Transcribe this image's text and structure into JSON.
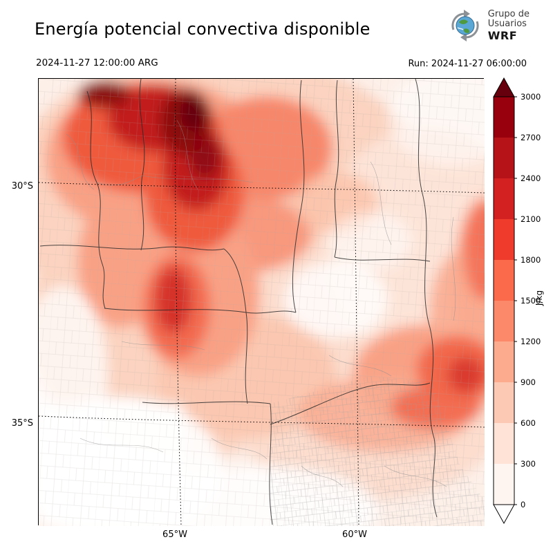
{
  "header": {
    "title": "Energía potencial convectiva disponible",
    "valid_time": "2024-11-27 12:00:00 ARG",
    "run_label": "Run: 2024-11-27 06:00:00",
    "logo": {
      "line1": "Grupo de",
      "line2": "Usuarios",
      "line3": "WRF"
    }
  },
  "map_axes": {
    "lat_ticks": [
      "30°S",
      "35°S"
    ],
    "lon_ticks": [
      "65°W",
      "60°W"
    ]
  },
  "colorbar": {
    "unit": "J/kg",
    "ticks": [
      "3000",
      "2700",
      "2400",
      "2100",
      "1800",
      "1500",
      "1200",
      "900",
      "600",
      "300",
      "0"
    ],
    "segment_colors_top_to_bottom": [
      "#99000d",
      "#b51318",
      "#d32020",
      "#ef3b2c",
      "#fb6a4a",
      "#fc8a6a",
      "#fcab8e",
      "#fcc9b4",
      "#fee3d6",
      "#fff5f0"
    ],
    "over_color": "#67000d",
    "under_color": "#ffffff"
  },
  "chart_data": {
    "type": "heatmap",
    "title": "Energía potencial convectiva disponible",
    "unit": "J/kg",
    "scale_levels": [
      0,
      300,
      600,
      900,
      1200,
      1500,
      1800,
      2100,
      2400,
      2700,
      3000
    ],
    "lat_gridlines": [
      "30°S",
      "35°S"
    ],
    "lon_gridlines": [
      "65°W",
      "60°W"
    ],
    "legend_position": "right"
  }
}
